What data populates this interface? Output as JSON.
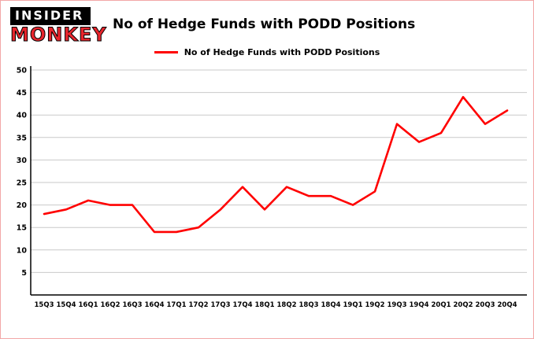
{
  "brand": {
    "line1": "INSIDER",
    "line2": "MONKEY",
    "accent_color": "#e8262d"
  },
  "header": {
    "title": "No of Hedge Funds with PODD Positions"
  },
  "legend": {
    "label": "No of Hedge Funds with PODD Positions",
    "color": "#ff0000"
  },
  "chart_data": {
    "type": "line",
    "title": "No of Hedge Funds with PODD Positions",
    "xlabel": "",
    "ylabel": "",
    "categories": [
      "15Q3",
      "15Q4",
      "16Q1",
      "16Q2",
      "16Q3",
      "16Q4",
      "17Q1",
      "17Q2",
      "17Q3",
      "17Q4",
      "18Q1",
      "18Q2",
      "18Q3",
      "18Q4",
      "19Q1",
      "19Q2",
      "19Q3",
      "19Q4",
      "20Q1",
      "20Q2",
      "20Q3",
      "20Q4"
    ],
    "series": [
      {
        "name": "No of Hedge Funds with PODD Positions",
        "color": "#ff0000",
        "values": [
          18,
          19,
          21,
          20,
          20,
          14,
          14,
          15,
          19,
          24,
          19,
          24,
          22,
          22,
          20,
          23,
          38,
          34,
          36,
          44,
          38,
          41
        ]
      }
    ],
    "ylim": [
      0,
      50
    ],
    "ytick_step": 5,
    "grid": true,
    "gridline_color": "#c9c9c9",
    "legend_position": "top"
  }
}
